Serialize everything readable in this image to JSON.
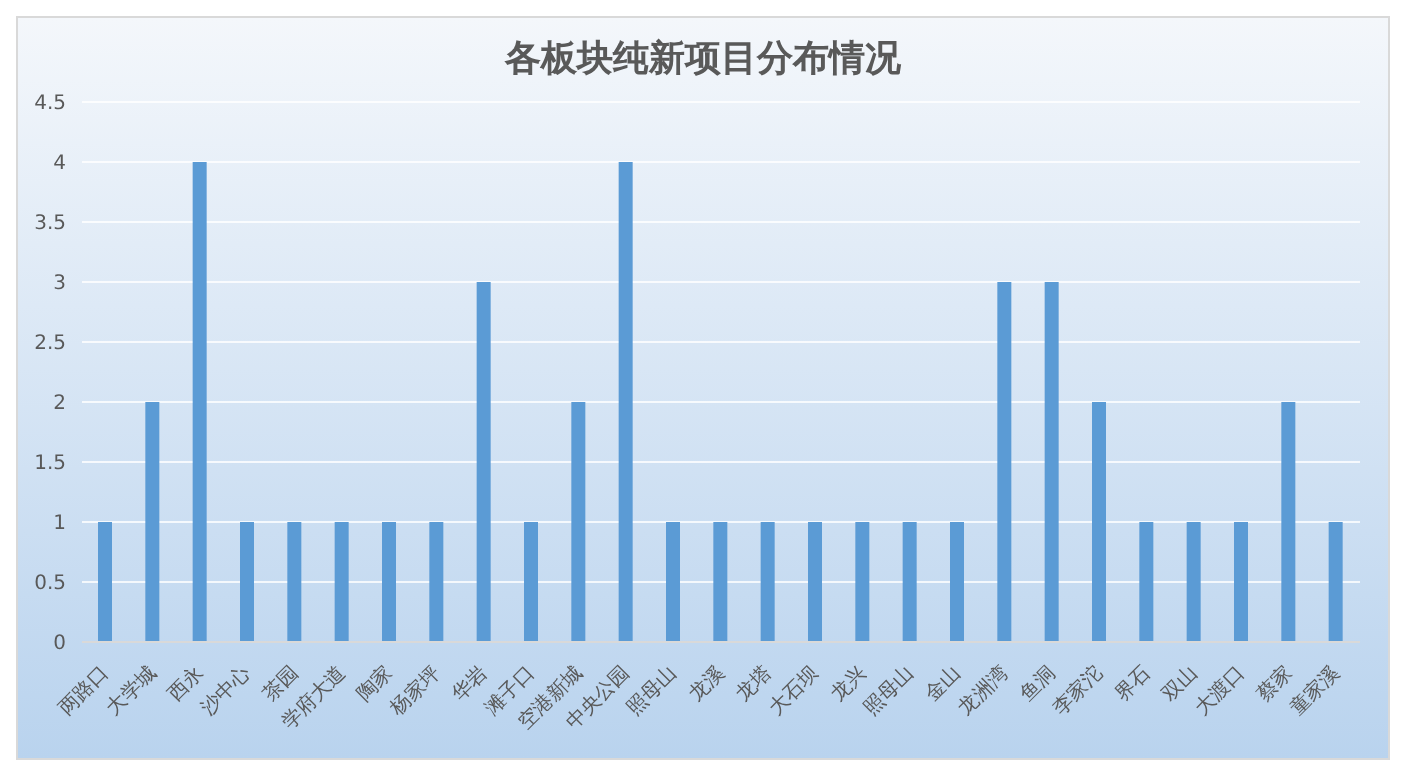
{
  "chart_data": {
    "type": "bar",
    "title": "各板块纯新项目分布情况",
    "categories": [
      "两路口",
      "大学城",
      "西永",
      "沙中心",
      "茶园",
      "学府大道",
      "陶家",
      "杨家坪",
      "华岩",
      "滩子口",
      "空港新城",
      "中央公园",
      "照母山",
      "龙溪",
      "龙塔",
      "大石坝",
      "龙兴",
      "照母山",
      "金山",
      "龙洲湾",
      "鱼洞",
      "李家沱",
      "界石",
      "双山",
      "大渡口",
      "蔡家",
      "童家溪"
    ],
    "values": [
      1,
      2,
      4,
      1,
      1,
      1,
      1,
      1,
      3,
      1,
      2,
      4,
      1,
      1,
      1,
      1,
      1,
      1,
      1,
      3,
      3,
      2,
      1,
      1,
      1,
      2,
      1
    ],
    "color": "#5b9bd5",
    "ylim": [
      0,
      4.5
    ],
    "yticks": [
      0,
      0.5,
      1,
      1.5,
      2,
      2.5,
      3,
      3.5,
      4,
      4.5
    ],
    "grid": "y"
  }
}
